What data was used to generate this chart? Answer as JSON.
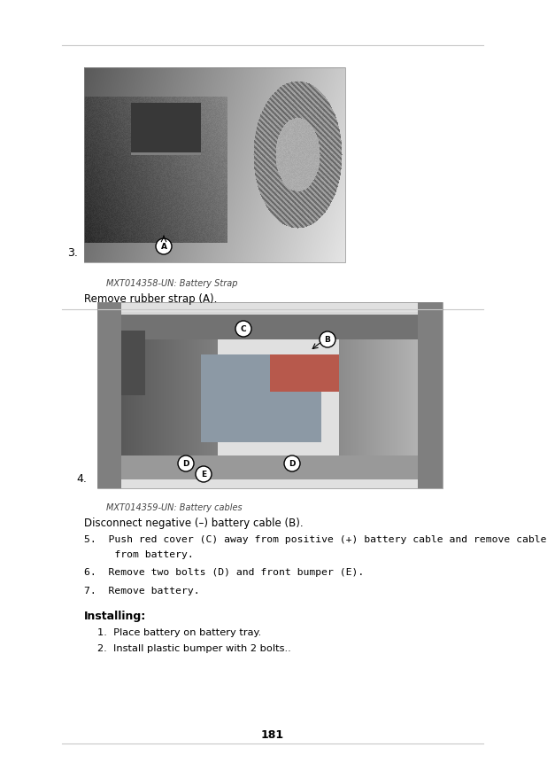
{
  "page_number": "181",
  "bg_color": "#ffffff",
  "separator_color": "#c8c8c8",
  "text_color": "#000000",
  "small_text_color": "#444444",
  "section1": {
    "item_number": "3.",
    "image_caption_small": "MXT014358-UN: Battery Strap",
    "image_caption": "Remove rubber strap (A).",
    "label_A": "A"
  },
  "section2": {
    "item_number": "4.",
    "image_caption_small": "MXT014359-UN: Battery cables",
    "image_caption": "Disconnect negative (–) battery cable (B).",
    "label_B": "B",
    "label_C": "C",
    "label_D": "D",
    "label_E": "E",
    "step5": "5.  Push red cover (C) away from positive (+) battery cable and remove cable",
    "step5b": "     from battery.",
    "step6": "6.  Remove two bolts (D) and front bumper (E).",
    "step7": "7.  Remove battery."
  },
  "installing_section": {
    "heading": "Installing:",
    "step1": "1.  Place battery on battery tray.",
    "step2": "2.  Install plastic bumper with 2 bolts.."
  }
}
